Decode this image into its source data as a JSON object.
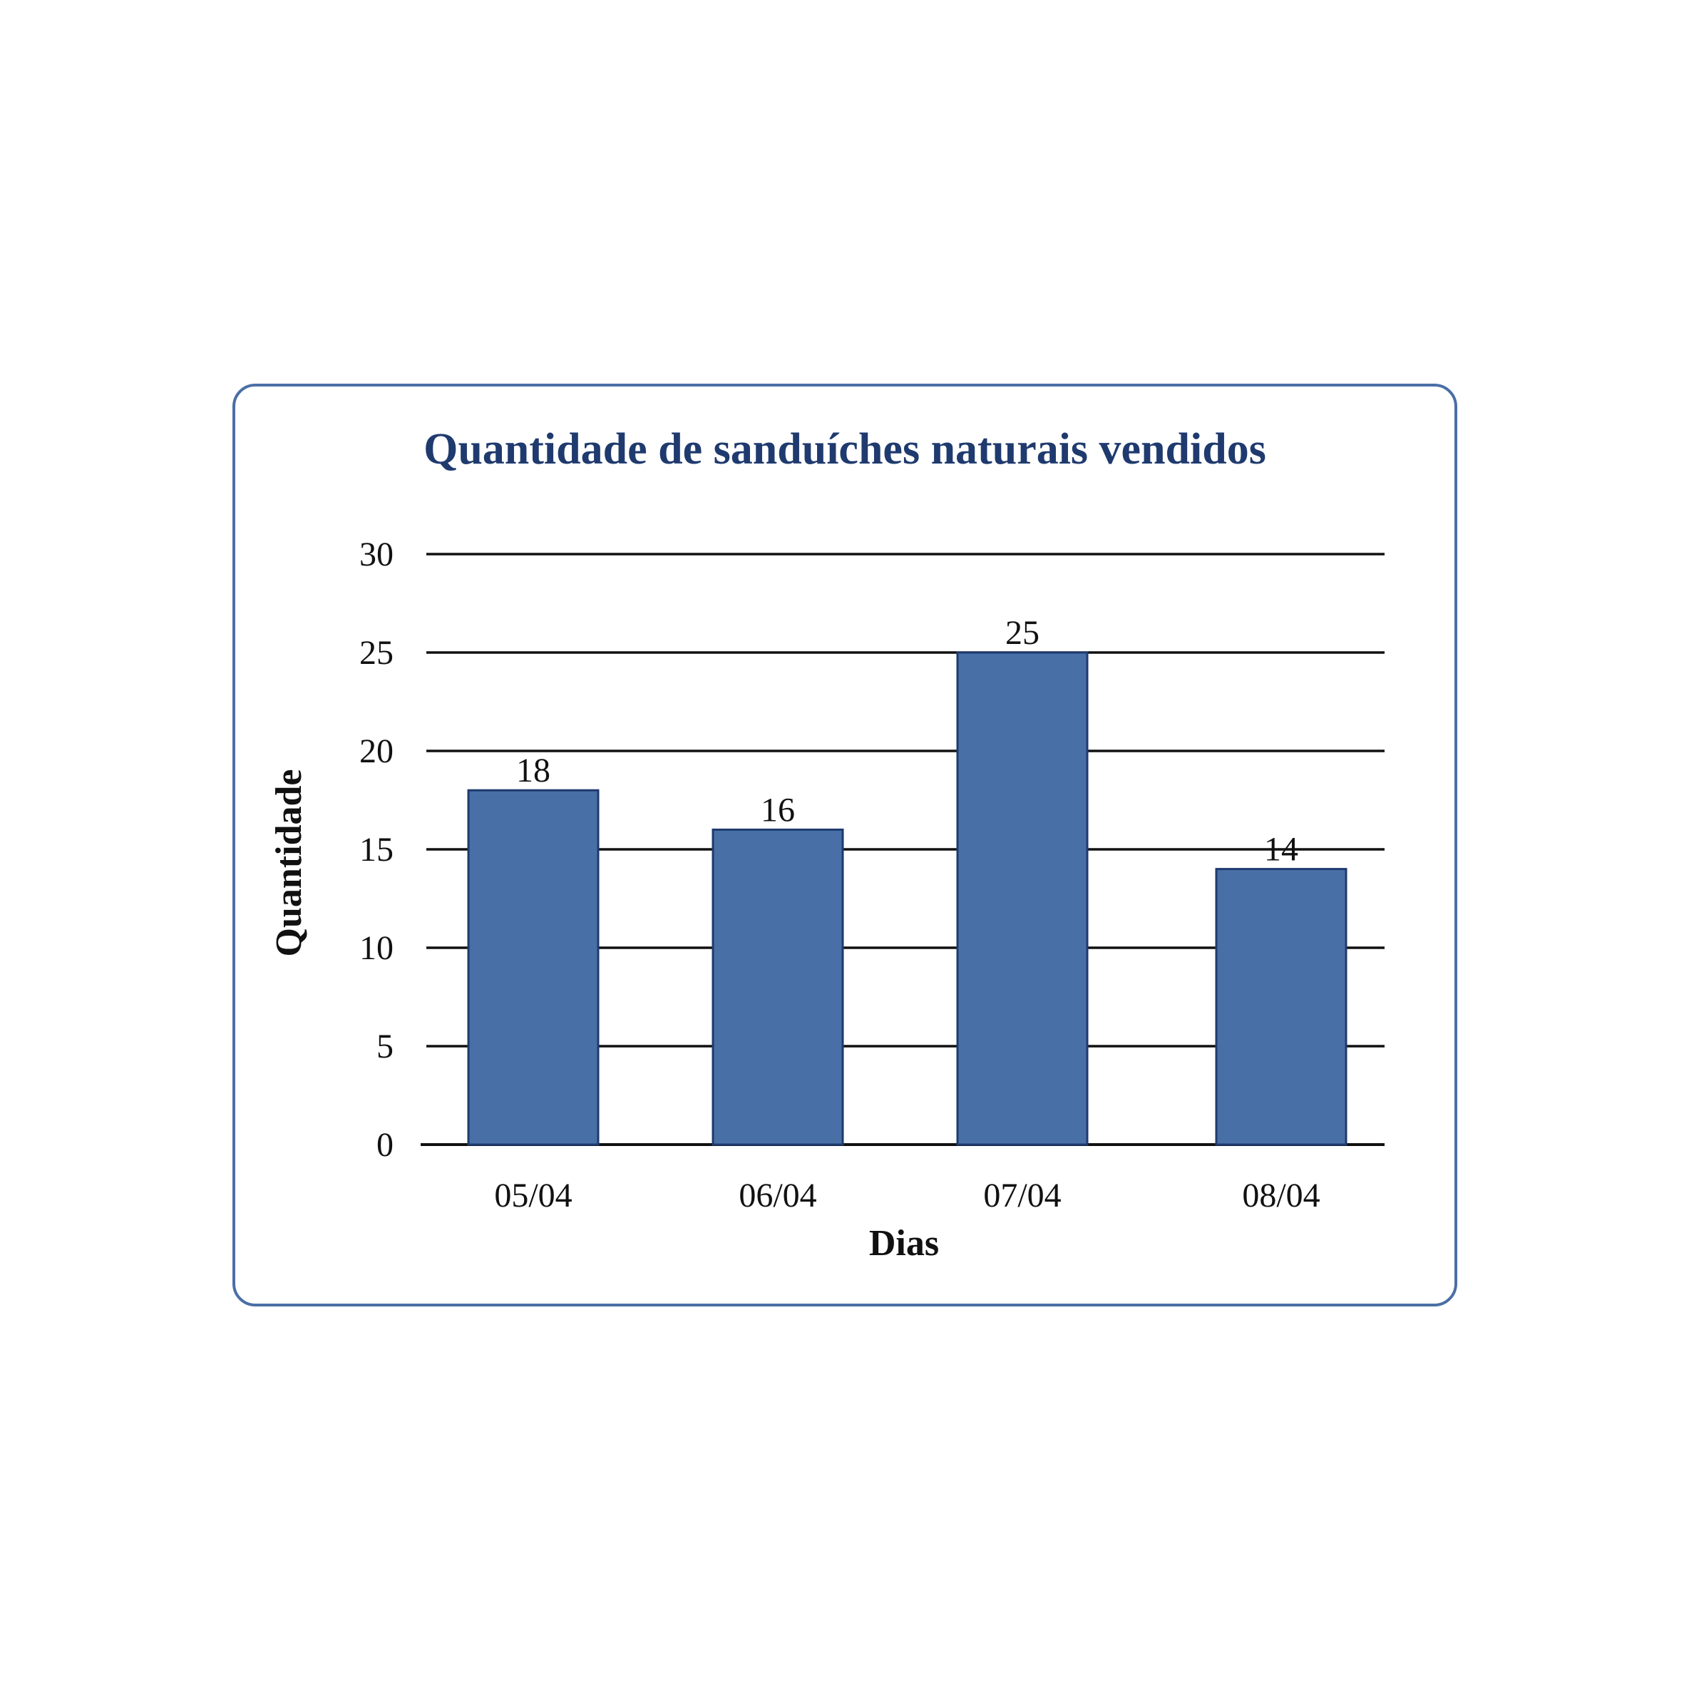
{
  "colors": {
    "frame": "#4a6fa5",
    "title": "#1f3a6e",
    "bar_fill": "#4870a6",
    "bar_stroke": "#1f3a6e",
    "gridline": "#111111"
  },
  "chart_data": {
    "type": "bar",
    "title": "Quantidade de sanduíches naturais vendidos",
    "xlabel": "Dias",
    "ylabel": "Quantidade",
    "categories": [
      "05/04",
      "06/04",
      "07/04",
      "08/04"
    ],
    "values": [
      18,
      16,
      25,
      14
    ],
    "data_labels": [
      "18",
      "16",
      "25",
      "14"
    ],
    "ylim": [
      0,
      30
    ],
    "yticks": [
      0,
      5,
      10,
      15,
      20,
      25,
      30
    ],
    "grid": true,
    "legend": "none"
  }
}
